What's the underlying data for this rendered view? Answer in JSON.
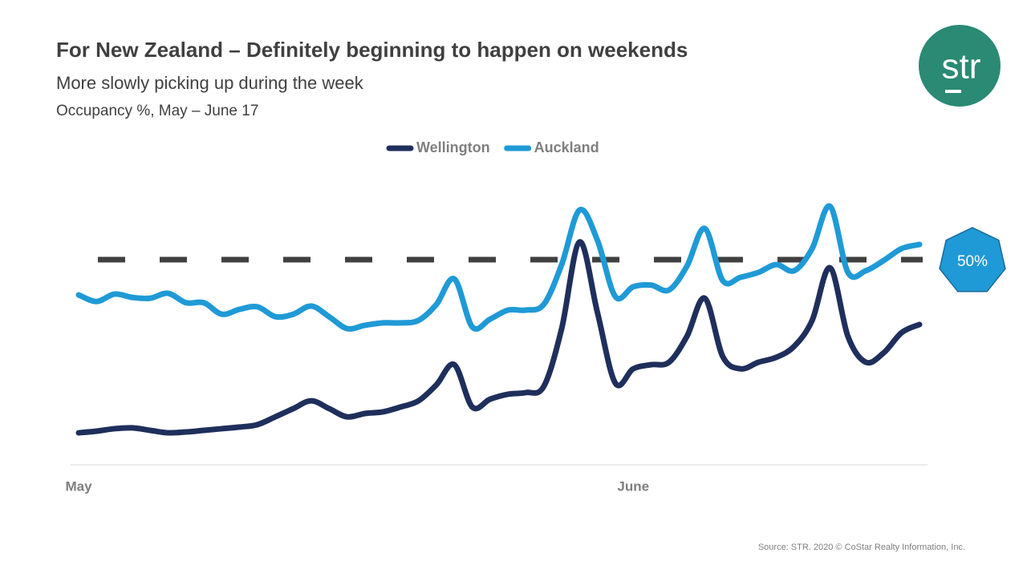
{
  "chart_data": {
    "type": "line",
    "title": "For New Zealand – Definitely beginning to happen on weekends",
    "subtitle": "More slowly picking up during the week",
    "note": "Occupancy %, May – June 17",
    "source": "Source: STR. 2020 © CoStar Realty Information, Inc.",
    "logo": "str",
    "categories": [
      "May",
      null,
      null,
      null,
      null,
      null,
      null,
      null,
      null,
      null,
      null,
      null,
      null,
      null,
      null,
      null,
      null,
      null,
      null,
      null,
      null,
      null,
      null,
      null,
      null,
      null,
      null,
      null,
      null,
      null,
      null,
      "June",
      null,
      null,
      null,
      null,
      null,
      null,
      null,
      null,
      null,
      null,
      null,
      null,
      null,
      null,
      null,
      null
    ],
    "series": [
      {
        "name": "Wellington",
        "color": "#1f2f5c",
        "values": [
          7.8,
          8.2,
          8.8,
          9.0,
          8.4,
          7.8,
          8.0,
          8.4,
          8.8,
          9.2,
          9.8,
          11.7,
          13.7,
          15.6,
          13.7,
          11.7,
          12.5,
          12.9,
          14.1,
          15.6,
          19.5,
          24.4,
          14.1,
          16.0,
          17.2,
          17.6,
          19.1,
          33.2,
          54.3,
          37.1,
          19.9,
          23.4,
          24.4,
          25.0,
          31.3,
          40.6,
          26.4,
          23.4,
          25.0,
          26.2,
          28.9,
          35.2,
          48.0,
          31.3,
          25.0,
          27.3,
          32.2,
          34.2
        ]
      },
      {
        "name": "Auckland",
        "color": "#1f9ad6",
        "values": [
          41.4,
          39.8,
          41.6,
          40.8,
          40.6,
          41.8,
          39.5,
          39.5,
          36.7,
          37.9,
          38.5,
          36.1,
          36.7,
          38.7,
          36.1,
          33.2,
          34.0,
          34.6,
          34.6,
          35.2,
          39.1,
          45.3,
          33.6,
          35.5,
          37.7,
          37.7,
          39.1,
          48.8,
          62.1,
          54.7,
          41.0,
          43.4,
          43.8,
          42.6,
          48.4,
          57.6,
          44.9,
          45.7,
          46.9,
          48.8,
          47.3,
          52.7,
          63.0,
          46.9,
          47.3,
          49.8,
          52.7,
          53.7
        ]
      }
    ],
    "reference_line": {
      "value": 50,
      "label": "50%"
    },
    "ylim": [
      0,
      70
    ],
    "legend": "top"
  }
}
